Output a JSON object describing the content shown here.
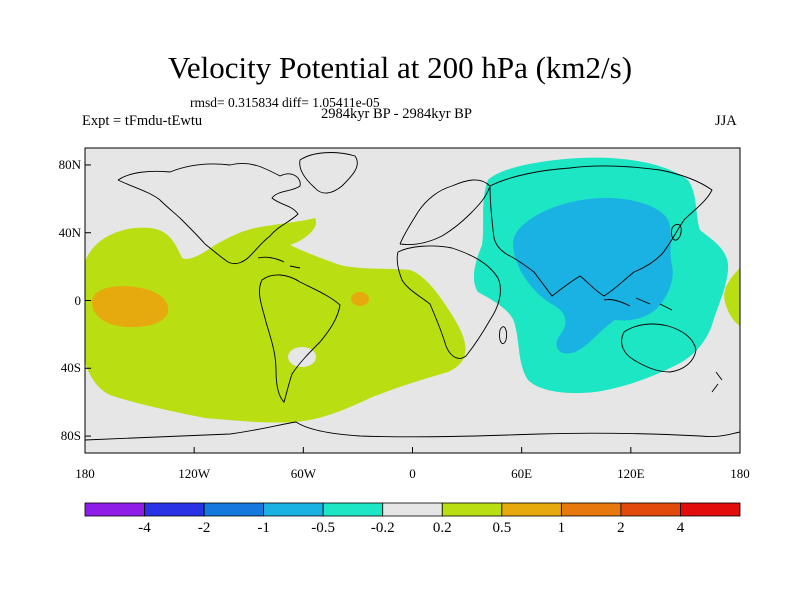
{
  "title": "Velocity Potential at 200 hPa (km2/s)",
  "stats_line": "rmsd= 0.315834 diff= 1.05411e-05",
  "period": "2984kyr BP - 2984kyr BP",
  "experiment": "Expt = tFmdu-tEwtu",
  "season": "JJA",
  "map": {
    "lon_range": [
      -180,
      180
    ],
    "lat_range": [
      -90,
      90
    ],
    "x_ticks": [
      {
        "lon": -180,
        "label": "180"
      },
      {
        "lon": -120,
        "label": "120W"
      },
      {
        "lon": -60,
        "label": "60W"
      },
      {
        "lon": 0,
        "label": "0"
      },
      {
        "lon": 60,
        "label": "60E"
      },
      {
        "lon": 120,
        "label": "120E"
      },
      {
        "lon": 180,
        "label": "180"
      }
    ],
    "y_ticks": [
      {
        "lat": 80,
        "label": "80N"
      },
      {
        "lat": 40,
        "label": "40N"
      },
      {
        "lat": 0,
        "label": "0"
      },
      {
        "lat": -40,
        "label": "40S"
      },
      {
        "lat": -80,
        "label": "80S"
      }
    ],
    "background_color": "#e6e6e6"
  },
  "colorbar": {
    "colors": [
      "#8f1de8",
      "#2a32e6",
      "#1379dc",
      "#1ab2e2",
      "#1de6c4",
      "#e6e6e6",
      "#b9de12",
      "#e6aa0e",
      "#e6780c",
      "#e24a0c",
      "#e20c0c"
    ],
    "labels": [
      "-4",
      "-2",
      "-1",
      "-0.5",
      "-0.2",
      "0.2",
      "0.5",
      "1",
      "2",
      "4"
    ]
  },
  "regions": [
    {
      "name": "asia-negative",
      "level_index": 4,
      "color": "#1de6c4"
    },
    {
      "name": "asia-core-negative",
      "level_index": 3,
      "color": "#1ab2e2"
    },
    {
      "name": "atlantic-positive",
      "level_index": 6,
      "color": "#b9de12"
    },
    {
      "name": "pacific-positive-core",
      "level_index": 7,
      "color": "#e6aa0e"
    }
  ]
}
